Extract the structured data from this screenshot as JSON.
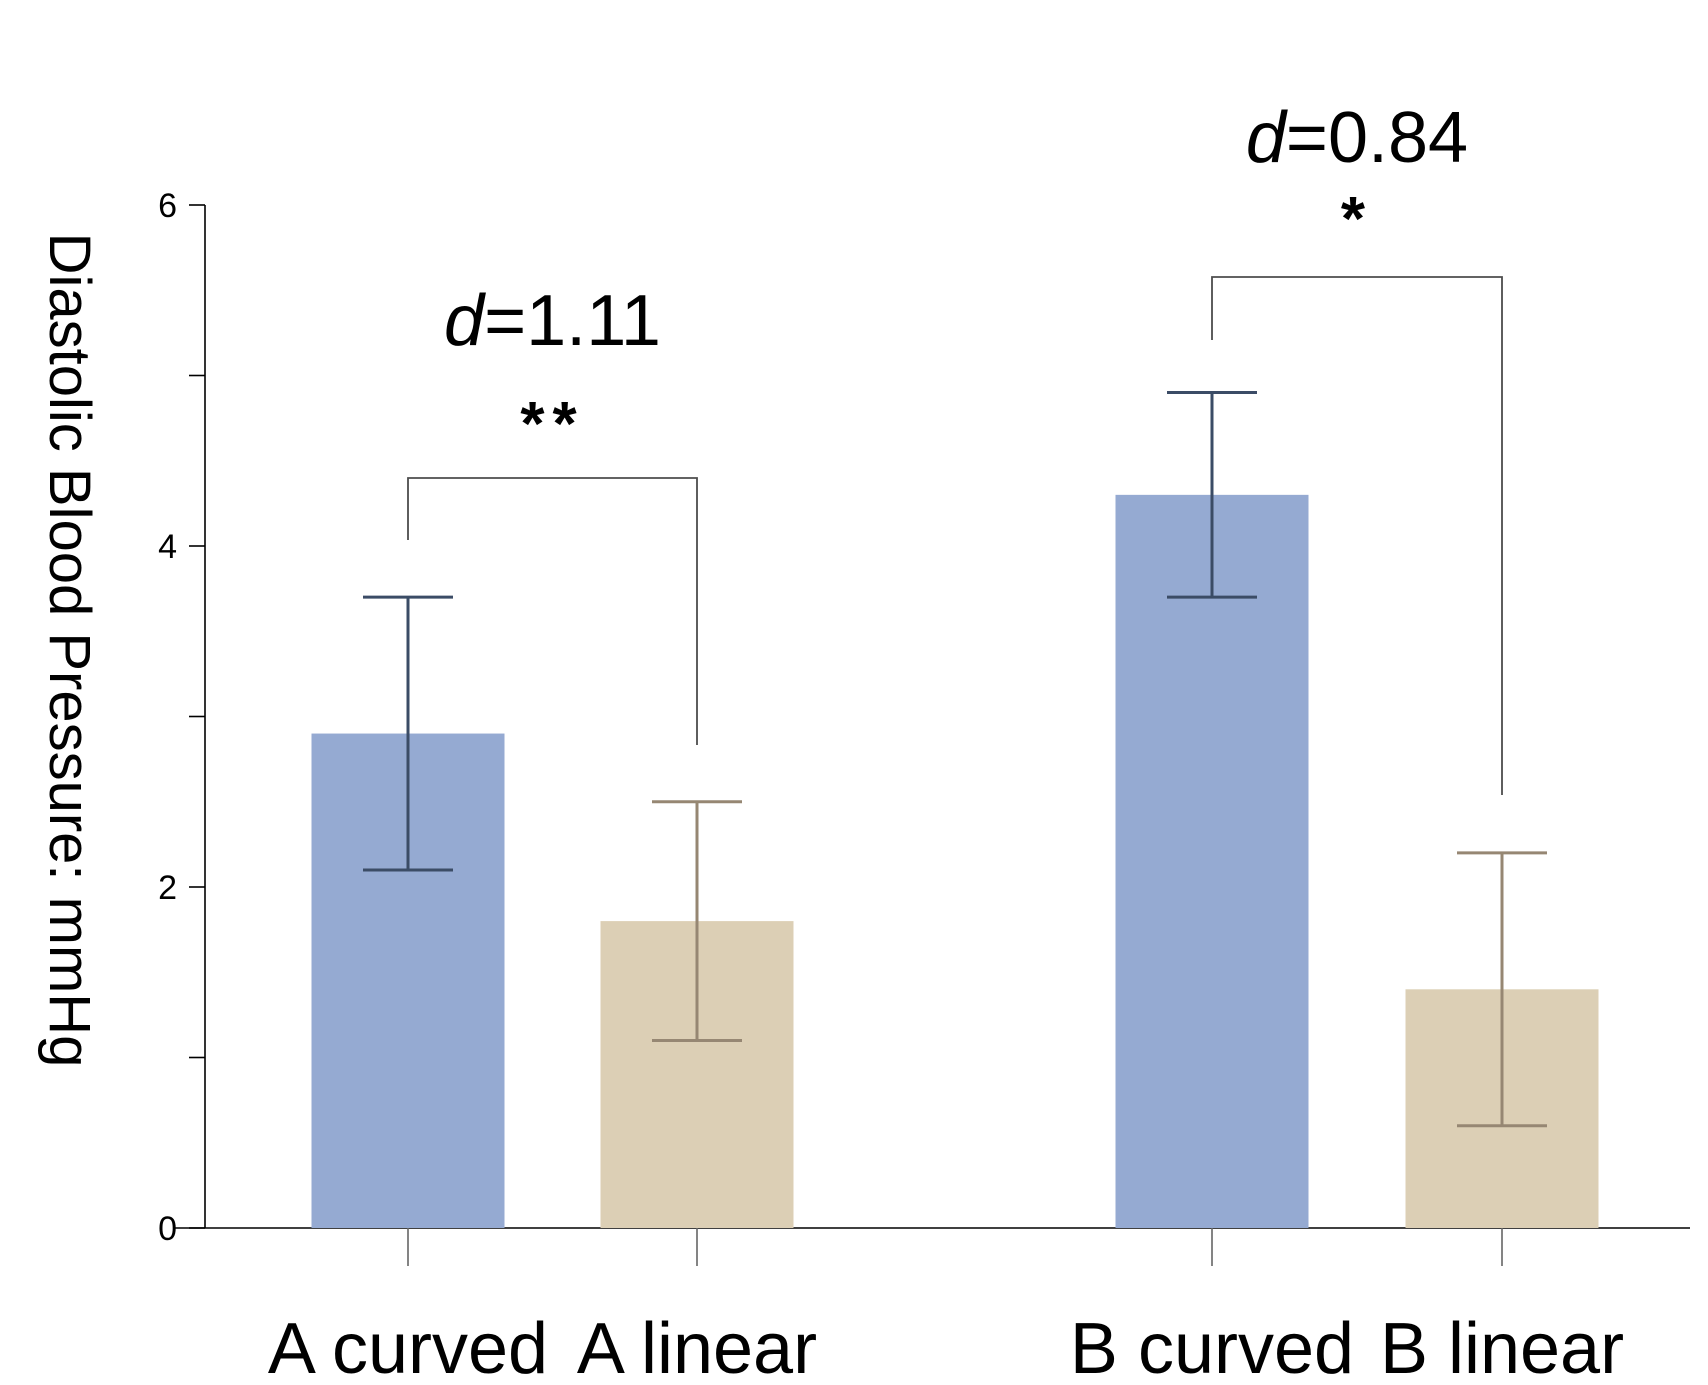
{
  "chart_data": {
    "type": "bar",
    "title": "",
    "xlabel": "",
    "ylabel": "Diastolic Blood Pressure: mmHg",
    "ylim": [
      0,
      6
    ],
    "yticks": [
      0,
      2,
      4,
      6
    ],
    "grid": false,
    "categories": [
      "A curved",
      "A linear",
      "B curved",
      "B linear"
    ],
    "values": [
      2.9,
      1.8,
      4.3,
      1.4
    ],
    "error_low": [
      2.1,
      1.1,
      3.7,
      0.6
    ],
    "error_high": [
      3.7,
      2.5,
      4.9,
      2.2
    ],
    "bar_colors": [
      "#95aad2",
      "#dccfb5",
      "#95aad2",
      "#dccfb5"
    ],
    "error_colors": [
      "#3b4c66",
      "#968773",
      "#3b4c66",
      "#968773"
    ],
    "comparisons": [
      {
        "groups": [
          "A curved",
          "A linear"
        ],
        "effect_symbol": "d",
        "effect_value": "=1.11",
        "significance": "**"
      },
      {
        "groups": [
          "B curved",
          "B linear"
        ],
        "effect_symbol": "d",
        "effect_value": "=0.84",
        "significance": "*"
      }
    ]
  }
}
